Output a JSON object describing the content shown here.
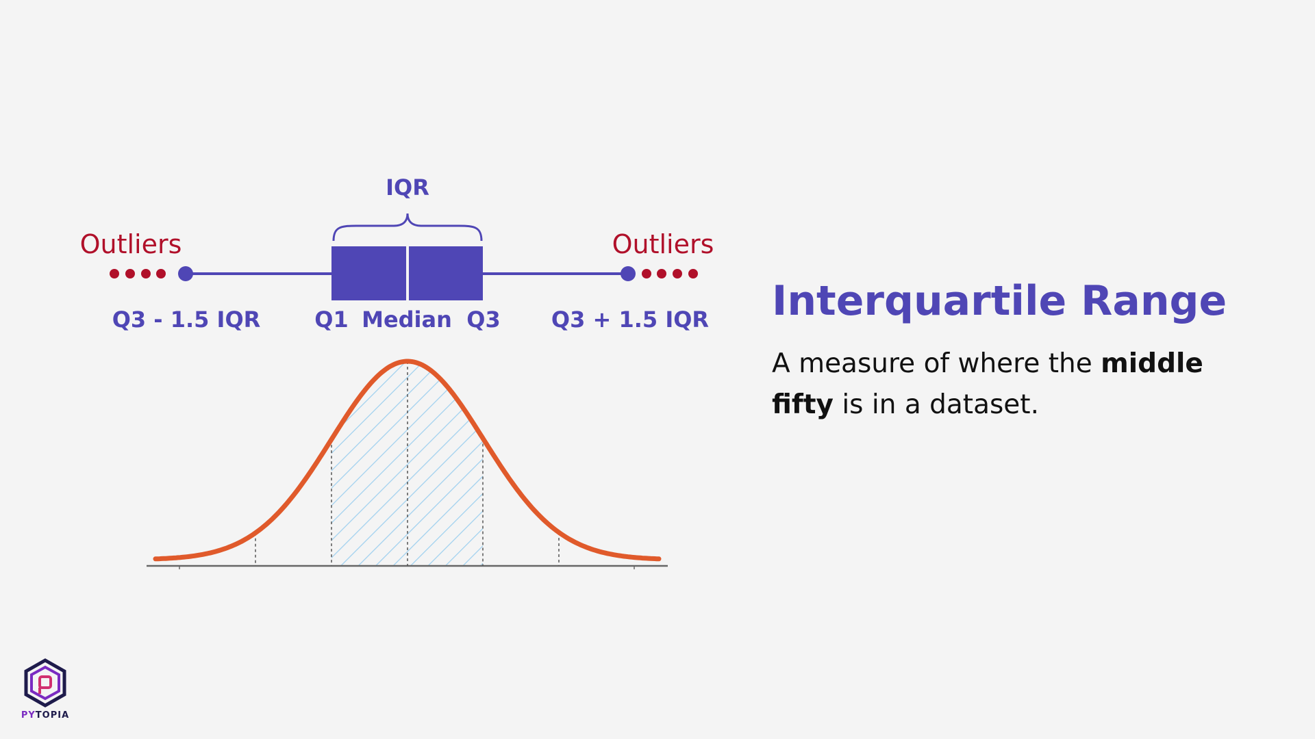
{
  "diagram": {
    "iqr_label": "IQR",
    "outliers_left_label": "Outliers",
    "outliers_right_label": "Outliers",
    "lower_fence_label": "Q3 - 1.5 IQR",
    "q1_label": "Q1",
    "median_label": "Median",
    "q3_label": "Q3",
    "upper_fence_label": "Q3 + 1.5 IQR",
    "left_outlier_count": 4,
    "right_outlier_count": 4
  },
  "heading": {
    "title": "Interquartile Range",
    "description_pre": "A measure of where the ",
    "description_bold": "middle fifty",
    "description_post": " is in a dataset."
  },
  "logo": {
    "text_part1": "PY",
    "text_part2": "TOPIA"
  },
  "colors": {
    "background": "#f4f4f4",
    "accent_purple": "#4f46b5",
    "outlier_red": "#b0102a",
    "curve_orange": "#e05a2b",
    "hatch_blue": "#9fd0ef",
    "text_dark": "#111111"
  },
  "icons": [
    "pytopia-hexagon-logo-icon"
  ]
}
